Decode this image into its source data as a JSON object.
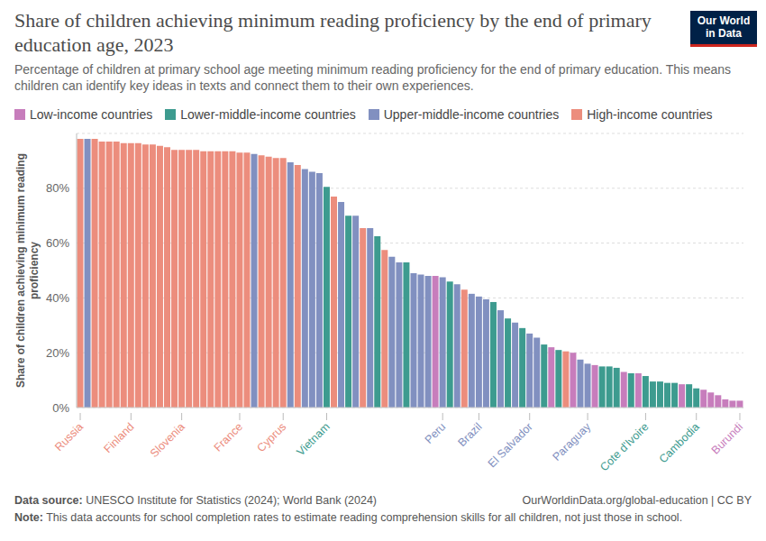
{
  "chart_data": {
    "type": "bar",
    "title": "Share of children achieving minimum reading proficiency by the end of primary education age, 2023",
    "subtitle": "Percentage of children at primary school age meeting minimum reading proficiency for the end of primary education. This means children can identify key ideas in texts and connect them to their own experiences.",
    "y_label": "Share of children achieving minimum reading proficiency",
    "source": "Data source: UNESCO Institute for Statistics (2024); World Bank (2024)",
    "url": "OurWorldinData.org/global-education | CC BY",
    "note": "Note: This data accounts for school completion rates to estimate reading comprehension skills for all children, not just those in school.",
    "logo": "Our World in Data",
    "stacked": true,
    "grid": true,
    "legend": "top",
    "ylim": [
      0,
      100
    ],
    "yticks": [
      {
        "value": 0,
        "label": "0%"
      },
      {
        "value": 20,
        "label": "20%"
      },
      {
        "value": 40,
        "label": "40%"
      },
      {
        "value": 60,
        "label": "60%"
      },
      {
        "value": 80,
        "label": "80%"
      }
    ],
    "categories": [
      "Russia",
      null,
      null,
      null,
      null,
      null,
      null,
      "Finland",
      null,
      null,
      null,
      null,
      null,
      null,
      "Slovenia",
      null,
      null,
      null,
      null,
      null,
      null,
      null,
      "France",
      null,
      null,
      null,
      null,
      null,
      "Cyprus",
      null,
      null,
      null,
      null,
      null,
      "Vietnam",
      null,
      null,
      null,
      null,
      null,
      null,
      null,
      null,
      null,
      null,
      null,
      null,
      null,
      null,
      null,
      "Peru",
      null,
      null,
      null,
      null,
      "Brazil",
      null,
      null,
      null,
      null,
      null,
      null,
      "El Salvador",
      null,
      null,
      null,
      null,
      null,
      null,
      null,
      "Paraguay",
      null,
      null,
      null,
      null,
      null,
      null,
      null,
      "Cote d'Ivoire",
      null,
      null,
      null,
      null,
      null,
      null,
      "Cambodia",
      null,
      null,
      null,
      null,
      null,
      "Burundi"
    ],
    "series": [
      {
        "name": "Low-income countries",
        "color": "#c77dbc",
        "values": [
          null,
          null,
          null,
          null,
          null,
          null,
          null,
          null,
          null,
          null,
          null,
          null,
          null,
          null,
          null,
          null,
          null,
          null,
          null,
          null,
          null,
          null,
          null,
          null,
          null,
          null,
          null,
          null,
          null,
          null,
          null,
          null,
          null,
          null,
          null,
          null,
          null,
          null,
          null,
          null,
          null,
          null,
          null,
          null,
          null,
          null,
          null,
          null,
          null,
          48,
          null,
          null,
          null,
          null,
          null,
          null,
          null,
          null,
          null,
          null,
          null,
          null,
          null,
          null,
          null,
          22,
          null,
          null,
          20,
          null,
          null,
          15.5,
          null,
          null,
          null,
          13,
          null,
          12.5,
          null,
          null,
          null,
          null,
          null,
          8.5,
          null,
          null,
          6.5,
          5.5,
          4.5,
          3,
          2.5,
          2.5
        ]
      },
      {
        "name": "Lower-middle-income countries",
        "color": "#3d9b8f",
        "values": [
          null,
          null,
          null,
          null,
          null,
          null,
          null,
          null,
          null,
          null,
          null,
          null,
          null,
          null,
          null,
          null,
          null,
          null,
          null,
          null,
          null,
          null,
          null,
          null,
          null,
          null,
          null,
          null,
          null,
          null,
          null,
          null,
          null,
          null,
          80.5,
          null,
          null,
          70,
          null,
          null,
          null,
          62.5,
          null,
          null,
          null,
          53,
          null,
          null,
          null,
          null,
          null,
          46,
          null,
          null,
          null,
          null,
          null,
          38.5,
          null,
          32.5,
          null,
          29,
          null,
          null,
          23,
          null,
          21,
          null,
          null,
          null,
          null,
          null,
          15,
          15,
          14.5,
          null,
          12.5,
          null,
          11.5,
          9.5,
          9.5,
          9,
          9,
          null,
          8.5,
          7,
          null,
          null,
          null,
          null,
          null,
          null
        ]
      },
      {
        "name": "Upper-middle-income countries",
        "color": "#8190c0",
        "values": [
          null,
          98,
          null,
          null,
          null,
          null,
          null,
          null,
          null,
          null,
          null,
          null,
          null,
          null,
          null,
          null,
          null,
          null,
          null,
          null,
          null,
          null,
          null,
          null,
          92.5,
          null,
          null,
          null,
          null,
          89.5,
          null,
          87,
          86,
          85.5,
          null,
          null,
          75,
          null,
          70,
          null,
          65.5,
          null,
          null,
          55,
          53,
          null,
          49,
          48.5,
          48,
          null,
          47.5,
          null,
          45,
          null,
          41.5,
          40.5,
          39.5,
          null,
          35.5,
          null,
          31,
          null,
          27,
          25.5,
          null,
          null,
          null,
          null,
          null,
          17.5,
          16,
          null,
          null,
          null,
          null,
          null,
          null,
          null,
          null,
          null,
          null,
          null,
          null,
          null,
          null,
          null,
          null,
          null,
          null,
          null,
          null,
          null
        ]
      },
      {
        "name": "High-income countries",
        "color": "#ec8d7d",
        "values": [
          98,
          null,
          98,
          97,
          97,
          97,
          96.5,
          96.5,
          96.5,
          96,
          96,
          95.5,
          95,
          94,
          94,
          94,
          94,
          93.5,
          93.5,
          93.5,
          93.5,
          93.5,
          93,
          93,
          null,
          92,
          91.5,
          91,
          91,
          null,
          88.5,
          null,
          null,
          null,
          null,
          77,
          null,
          null,
          null,
          65.5,
          null,
          null,
          57.5,
          null,
          null,
          null,
          null,
          null,
          null,
          null,
          null,
          null,
          null,
          43,
          null,
          null,
          null,
          null,
          null,
          null,
          null,
          null,
          null,
          null,
          null,
          null,
          null,
          20.5,
          null,
          null,
          null,
          null,
          null,
          null,
          null,
          null,
          null,
          null,
          null,
          null,
          null,
          null,
          null,
          null,
          null,
          null,
          null,
          null,
          null,
          null,
          null,
          null
        ]
      }
    ]
  }
}
